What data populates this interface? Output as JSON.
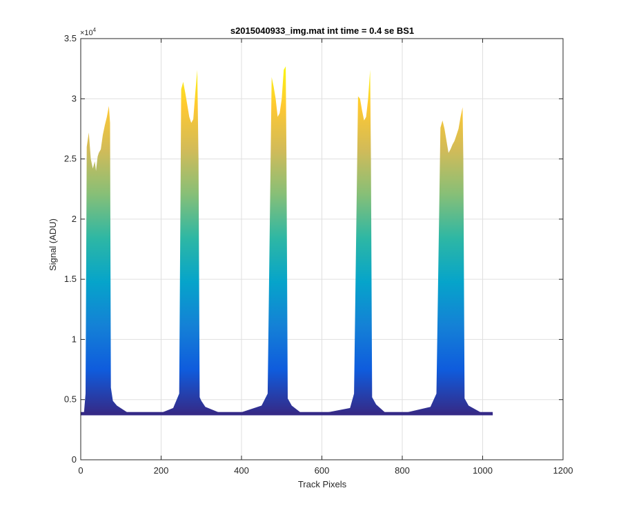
{
  "chart_data": {
    "type": "area",
    "title": "s2015040933_img.mat int time = 0.4 se   BS1",
    "xlabel": "Track Pixels",
    "ylabel": "Signal (ADU)",
    "xlim": [
      0,
      1200
    ],
    "ylim": [
      0,
      35000
    ],
    "x_ticks": [
      0,
      200,
      400,
      600,
      800,
      1000,
      1200
    ],
    "x_tick_labels": [
      "0",
      "200",
      "400",
      "600",
      "800",
      "1000",
      "1200"
    ],
    "y_ticks": [
      0,
      5000,
      10000,
      15000,
      20000,
      25000,
      30000,
      35000
    ],
    "y_tick_labels": [
      "0",
      "0.5",
      "1",
      "1.5",
      "2",
      "2.5",
      "3",
      "3.5"
    ],
    "y_exponent_label": "×10",
    "y_exponent_power": "4",
    "grid": true,
    "baseline": 3850,
    "colormap": [
      "#352A87",
      "#0F5CDD",
      "#1481D6",
      "#06A4CA",
      "#2EB7A4",
      "#87BF77",
      "#D1BB59",
      "#FEC832",
      "#F9FB0E"
    ],
    "series": [
      {
        "x": [
          0,
          8,
          12,
          15,
          20,
          25,
          30,
          35,
          38,
          42,
          45,
          50,
          55,
          60,
          65,
          70,
          73,
          75,
          80,
          90,
          120,
          150,
          200,
          230,
          245,
          250,
          255,
          260,
          265,
          270,
          275,
          280,
          285,
          290,
          293,
          296,
          300,
          310,
          350,
          380,
          400,
          450,
          465,
          475,
          480,
          485,
          490,
          495,
          500,
          505,
          510,
          512,
          515,
          525,
          550,
          600,
          670,
          680,
          690,
          695,
          700,
          705,
          710,
          715,
          720,
          722,
          725,
          735,
          760,
          800,
          870,
          885,
          895,
          900,
          905,
          910,
          915,
          920,
          925,
          930,
          935,
          940,
          945,
          950,
          952,
          955,
          965,
          1000,
          1025
        ],
        "y": [
          3850,
          3900,
          5500,
          26000,
          27200,
          25000,
          24200,
          24800,
          24000,
          25200,
          25500,
          25800,
          27000,
          27800,
          28500,
          29400,
          28000,
          6000,
          4900,
          4500,
          3850,
          3850,
          3900,
          4300,
          5500,
          30800,
          31400,
          30500,
          29500,
          28500,
          28000,
          28300,
          30500,
          32400,
          25000,
          5200,
          4900,
          4400,
          3850,
          3850,
          3950,
          4500,
          5500,
          31800,
          31000,
          30000,
          28500,
          28800,
          30000,
          32400,
          32700,
          25000,
          5100,
          4500,
          3850,
          3850,
          4300,
          5500,
          30200,
          30000,
          29000,
          28200,
          28500,
          30000,
          32400,
          25000,
          5200,
          4600,
          3850,
          3850,
          4400,
          5500,
          27600,
          28200,
          27500,
          26500,
          25500,
          25800,
          26200,
          26500,
          27000,
          27500,
          28500,
          29300,
          25000,
          5100,
          4500,
          3850,
          3850
        ]
      }
    ]
  }
}
